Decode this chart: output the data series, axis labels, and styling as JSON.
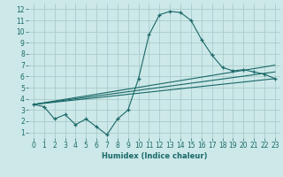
{
  "xlabel": "Humidex (Indice chaleur)",
  "background_color": "#cce8e8",
  "grid_color": "#aacccc",
  "line_color": "#1a6868",
  "xlim": [
    -0.5,
    23.5
  ],
  "ylim": [
    0.5,
    12.5
  ],
  "xticks": [
    0,
    1,
    2,
    3,
    4,
    5,
    6,
    7,
    8,
    9,
    10,
    11,
    12,
    13,
    14,
    15,
    16,
    17,
    18,
    19,
    20,
    21,
    22,
    23
  ],
  "yticks": [
    1,
    2,
    3,
    4,
    5,
    6,
    7,
    8,
    9,
    10,
    11,
    12
  ],
  "main_line_x": [
    0,
    1,
    2,
    3,
    4,
    5,
    6,
    7,
    8,
    9,
    10,
    11,
    12,
    13,
    14,
    15,
    16,
    17,
    18,
    19,
    20,
    21,
    22,
    23
  ],
  "main_line_y": [
    3.5,
    3.3,
    2.2,
    2.6,
    1.7,
    2.2,
    1.5,
    0.8,
    2.2,
    3.0,
    5.8,
    9.7,
    11.5,
    11.8,
    11.7,
    11.0,
    9.3,
    7.9,
    6.8,
    6.5,
    6.6,
    6.4,
    6.2,
    5.8
  ],
  "line2_x": [
    0,
    23
  ],
  "line2_y": [
    3.5,
    5.8
  ],
  "line3_x": [
    0,
    23
  ],
  "line3_y": [
    3.5,
    6.4
  ],
  "line4_x": [
    0,
    23
  ],
  "line4_y": [
    3.5,
    7.0
  ]
}
